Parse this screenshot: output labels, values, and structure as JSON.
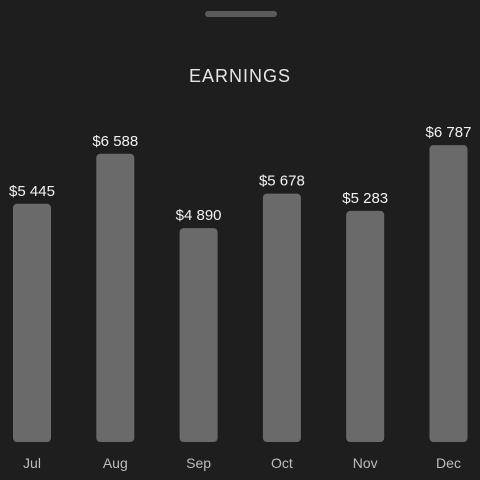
{
  "header": {
    "title": "EARNINGS"
  },
  "colors": {
    "background": "#1e1e1e",
    "bar": "#6a6a6a",
    "value_text": "#f2f2f2",
    "month_text": "#bdbdbd",
    "handle": "#5a5a5a"
  },
  "chart_data": {
    "type": "bar",
    "title": "EARNINGS",
    "xlabel": "",
    "ylabel": "",
    "categories": [
      "Jul",
      "Aug",
      "Sep",
      "Oct",
      "Nov",
      "Dec"
    ],
    "values": [
      5445,
      6588,
      4890,
      5678,
      5283,
      6787
    ],
    "value_labels": [
      "$5 445",
      "$6 588",
      "$4 890",
      "$5 678",
      "$5 283",
      "$6 787"
    ],
    "ylim": [
      0,
      7000
    ],
    "grid": false,
    "legend": "none"
  }
}
